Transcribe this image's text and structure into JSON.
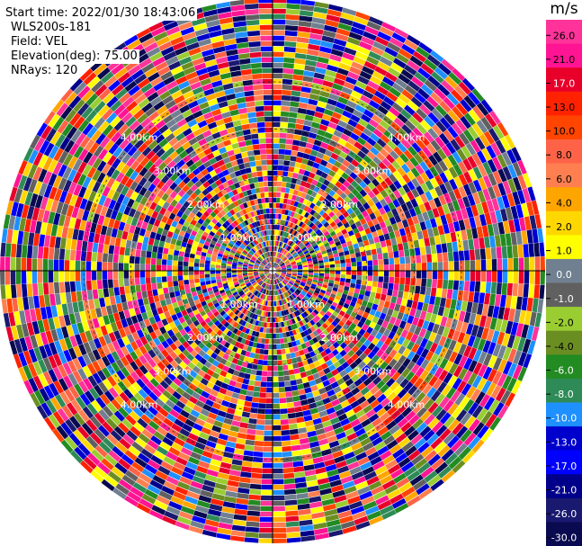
{
  "header": {
    "start_time": "Start time: 2022/01/30 18:43:06",
    "instrument": "WLS200s-181",
    "field": "Field: VEL",
    "elevation": "Elevation(deg): 75.00",
    "nrays": "NRays: 120"
  },
  "chart_data": {
    "type": "heatmap",
    "projection": "polar-ppi",
    "field": "VEL",
    "unit": "m/s",
    "n_rays": 120,
    "elevation_deg": 75.0,
    "range_rings_labels": [
      "1.00km",
      "2.00km",
      "3.00km",
      "4.00km"
    ],
    "range_ring_values_km": [
      1.0,
      2.0,
      3.0,
      4.0
    ],
    "max_range_km": 5.7,
    "colorbar": {
      "title": "m/s",
      "ticks": [
        "26.0",
        "21.0",
        "17.0",
        "13.0",
        "10.0",
        "8.0",
        "6.0",
        "4.0",
        "2.0",
        "1.0",
        "0.0",
        "-1.0",
        "-2.0",
        "-4.0",
        "-6.0",
        "-8.0",
        "-10.0",
        "-13.0",
        "-17.0",
        "-21.0",
        "-26.0",
        "-30.0"
      ],
      "colors": [
        "#ff3399",
        "#ff1493",
        "#e8002a",
        "#ff2200",
        "#ff4500",
        "#ff6347",
        "#ff7f50",
        "#ffa500",
        "#ffd700",
        "#ffff00",
        "#708090",
        "#606060",
        "#9acd32",
        "#6b8e23",
        "#228b22",
        "#2e8b57",
        "#1e90ff",
        "#0000cd",
        "#0000ff",
        "#00008b",
        "#191970",
        "#0a0a50"
      ]
    }
  }
}
